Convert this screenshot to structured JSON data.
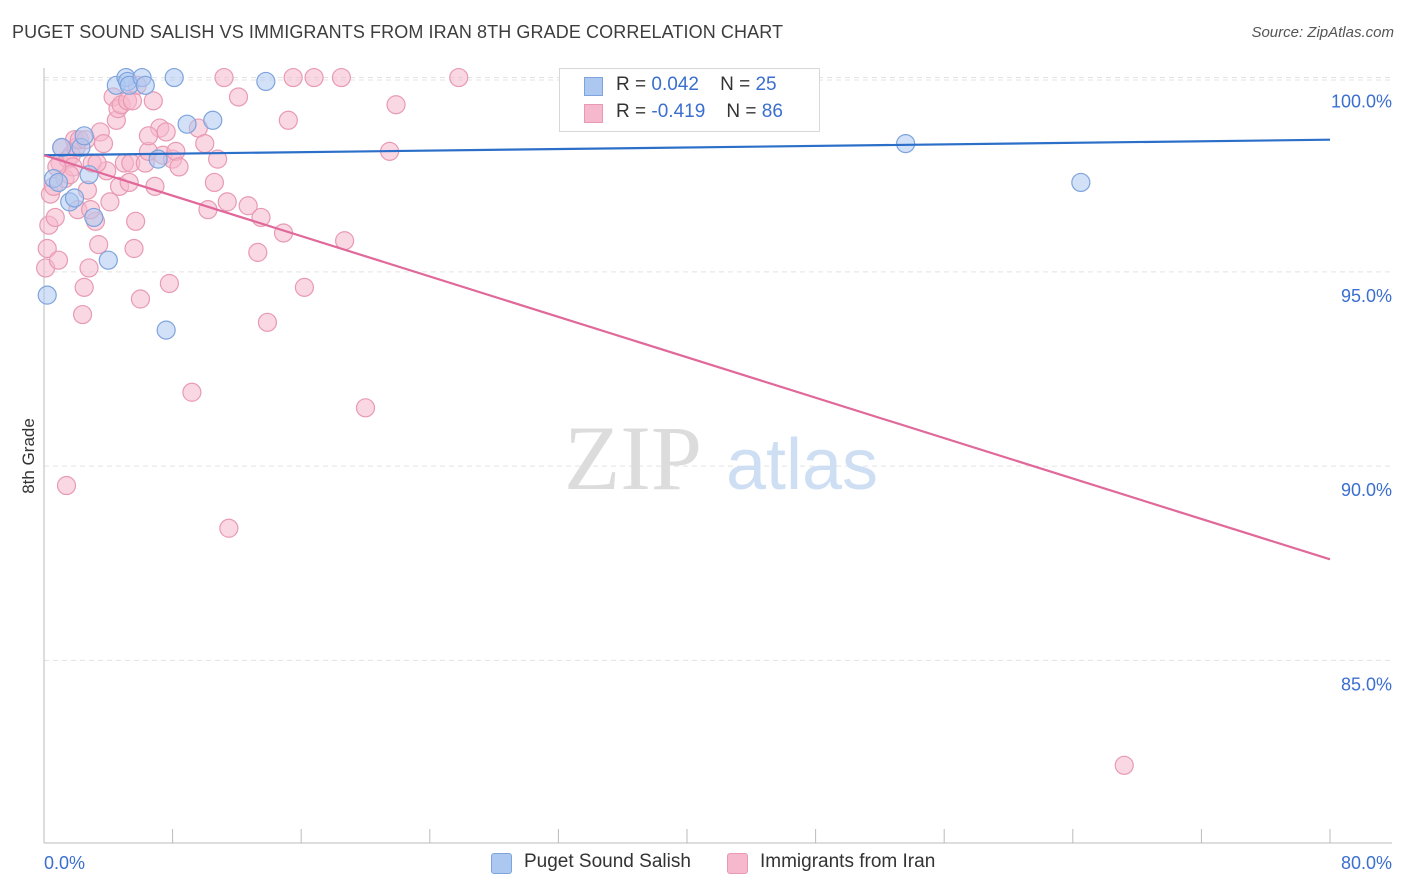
{
  "title": "PUGET SOUND SALISH VS IMMIGRANTS FROM IRAN 8TH GRADE CORRELATION CHART",
  "source": "Source: ZipAtlas.com",
  "watermark": {
    "zip": "ZIP",
    "atlas": "atlas"
  },
  "colors": {
    "blue_fill": "#adc8f0",
    "blue_stroke": "#7ea3dd",
    "blue_line": "#2c6fc9",
    "pink_fill": "#f6b8cc",
    "pink_stroke": "#e89ab3",
    "pink_line": "#e0689a",
    "tick_label": "#3b6fcf",
    "grid": "#e3e3e3"
  },
  "legend_top": {
    "rows": [
      {
        "r_label": "R =",
        "r_value": "0.042",
        "n_label": "N =",
        "n_value": "25"
      },
      {
        "r_label": "R =",
        "r_value": "-0.419",
        "n_label": "N =",
        "n_value": "86"
      }
    ]
  },
  "legend_bottom": {
    "items": [
      {
        "label": "Puget Sound Salish"
      },
      {
        "label": "Immigrants from Iran"
      }
    ]
  },
  "chart_data": {
    "type": "scatter",
    "title": "PUGET SOUND SALISH VS IMMIGRANTS FROM IRAN 8TH GRADE CORRELATION CHART",
    "xlabel": "",
    "ylabel": "8th Grade",
    "xlim": [
      0,
      80
    ],
    "ylim": [
      80.3,
      100.4
    ],
    "x_tick_labels": [
      "0.0%",
      "80.0%"
    ],
    "y_ticks": [
      85,
      90,
      95,
      100
    ],
    "y_tick_labels": [
      "85.0%",
      "90.0%",
      "95.0%",
      "100.0%"
    ],
    "grid": true,
    "series": [
      {
        "name": "Puget Sound Salish",
        "r": 0.042,
        "n": 25,
        "trend": {
          "x": [
            0,
            80
          ],
          "y": [
            98.0,
            98.4
          ]
        },
        "points": [
          {
            "x": 0.2,
            "y": 94.4
          },
          {
            "x": 0.6,
            "y": 97.4
          },
          {
            "x": 0.9,
            "y": 97.3
          },
          {
            "x": 1.1,
            "y": 98.2
          },
          {
            "x": 1.6,
            "y": 96.8
          },
          {
            "x": 1.9,
            "y": 96.9
          },
          {
            "x": 2.3,
            "y": 98.2
          },
          {
            "x": 2.5,
            "y": 98.5
          },
          {
            "x": 2.8,
            "y": 97.5
          },
          {
            "x": 3.1,
            "y": 96.4
          },
          {
            "x": 4.0,
            "y": 95.3
          },
          {
            "x": 4.5,
            "y": 99.8
          },
          {
            "x": 5.1,
            "y": 100.0
          },
          {
            "x": 5.2,
            "y": 99.9
          },
          {
            "x": 5.3,
            "y": 99.8
          },
          {
            "x": 6.1,
            "y": 100.0
          },
          {
            "x": 6.3,
            "y": 99.8
          },
          {
            "x": 7.1,
            "y": 97.9
          },
          {
            "x": 7.6,
            "y": 93.5
          },
          {
            "x": 8.1,
            "y": 100.0
          },
          {
            "x": 8.9,
            "y": 98.8
          },
          {
            "x": 10.5,
            "y": 98.9
          },
          {
            "x": 13.8,
            "y": 99.9
          },
          {
            "x": 53.6,
            "y": 98.3
          },
          {
            "x": 64.5,
            "y": 97.3
          }
        ]
      },
      {
        "name": "Immigrants from Iran",
        "r": -0.419,
        "n": 86,
        "trend": {
          "x": [
            0,
            80
          ],
          "y": [
            98.0,
            87.6
          ]
        },
        "points": [
          {
            "x": 0.1,
            "y": 95.1
          },
          {
            "x": 0.2,
            "y": 95.6
          },
          {
            "x": 0.3,
            "y": 96.2
          },
          {
            "x": 0.4,
            "y": 97.0
          },
          {
            "x": 0.6,
            "y": 97.2
          },
          {
            "x": 0.7,
            "y": 96.4
          },
          {
            "x": 0.9,
            "y": 95.3
          },
          {
            "x": 1.0,
            "y": 97.8
          },
          {
            "x": 1.1,
            "y": 98.2
          },
          {
            "x": 1.3,
            "y": 97.4
          },
          {
            "x": 1.4,
            "y": 89.5
          },
          {
            "x": 1.5,
            "y": 97.9
          },
          {
            "x": 1.7,
            "y": 98.0
          },
          {
            "x": 1.8,
            "y": 97.7
          },
          {
            "x": 1.9,
            "y": 98.4
          },
          {
            "x": 2.0,
            "y": 98.2
          },
          {
            "x": 2.1,
            "y": 96.6
          },
          {
            "x": 2.2,
            "y": 98.4
          },
          {
            "x": 2.4,
            "y": 93.9
          },
          {
            "x": 2.5,
            "y": 94.6
          },
          {
            "x": 2.6,
            "y": 98.4
          },
          {
            "x": 2.7,
            "y": 97.1
          },
          {
            "x": 2.8,
            "y": 95.1
          },
          {
            "x": 3.0,
            "y": 97.8
          },
          {
            "x": 3.2,
            "y": 96.3
          },
          {
            "x": 3.4,
            "y": 95.7
          },
          {
            "x": 3.5,
            "y": 98.6
          },
          {
            "x": 3.7,
            "y": 98.3
          },
          {
            "x": 3.9,
            "y": 97.6
          },
          {
            "x": 4.1,
            "y": 96.8
          },
          {
            "x": 4.3,
            "y": 99.5
          },
          {
            "x": 4.5,
            "y": 98.9
          },
          {
            "x": 4.6,
            "y": 99.2
          },
          {
            "x": 4.7,
            "y": 97.2
          },
          {
            "x": 4.8,
            "y": 99.3
          },
          {
            "x": 5.0,
            "y": 97.8
          },
          {
            "x": 5.2,
            "y": 99.4
          },
          {
            "x": 5.4,
            "y": 97.8
          },
          {
            "x": 5.5,
            "y": 99.4
          },
          {
            "x": 5.6,
            "y": 95.6
          },
          {
            "x": 5.7,
            "y": 96.3
          },
          {
            "x": 5.8,
            "y": 99.8
          },
          {
            "x": 6.0,
            "y": 94.3
          },
          {
            "x": 6.3,
            "y": 97.8
          },
          {
            "x": 6.5,
            "y": 98.1
          },
          {
            "x": 6.8,
            "y": 99.4
          },
          {
            "x": 6.9,
            "y": 97.2
          },
          {
            "x": 7.2,
            "y": 98.7
          },
          {
            "x": 7.4,
            "y": 98.0
          },
          {
            "x": 7.6,
            "y": 98.6
          },
          {
            "x": 7.8,
            "y": 94.7
          },
          {
            "x": 8.0,
            "y": 97.9
          },
          {
            "x": 8.2,
            "y": 98.1
          },
          {
            "x": 8.4,
            "y": 97.7
          },
          {
            "x": 9.2,
            "y": 91.9
          },
          {
            "x": 9.6,
            "y": 98.7
          },
          {
            "x": 10.0,
            "y": 98.3
          },
          {
            "x": 10.2,
            "y": 96.6
          },
          {
            "x": 10.6,
            "y": 97.3
          },
          {
            "x": 10.8,
            "y": 97.9
          },
          {
            "x": 11.2,
            "y": 100.0
          },
          {
            "x": 11.4,
            "y": 96.8
          },
          {
            "x": 11.5,
            "y": 88.4
          },
          {
            "x": 12.1,
            "y": 99.5
          },
          {
            "x": 12.7,
            "y": 96.7
          },
          {
            "x": 13.3,
            "y": 95.5
          },
          {
            "x": 13.5,
            "y": 96.4
          },
          {
            "x": 13.9,
            "y": 93.7
          },
          {
            "x": 14.9,
            "y": 96.0
          },
          {
            "x": 15.2,
            "y": 98.9
          },
          {
            "x": 15.5,
            "y": 100.0
          },
          {
            "x": 16.2,
            "y": 94.6
          },
          {
            "x": 16.8,
            "y": 100.0
          },
          {
            "x": 18.7,
            "y": 95.8
          },
          {
            "x": 18.5,
            "y": 100.0
          },
          {
            "x": 20.0,
            "y": 91.5
          },
          {
            "x": 21.5,
            "y": 98.1
          },
          {
            "x": 21.9,
            "y": 99.3
          },
          {
            "x": 25.8,
            "y": 100.0
          },
          {
            "x": 67.2,
            "y": 82.3
          },
          {
            "x": 6.5,
            "y": 98.5
          },
          {
            "x": 3.3,
            "y": 97.8
          },
          {
            "x": 1.6,
            "y": 97.5
          },
          {
            "x": 5.3,
            "y": 97.3
          },
          {
            "x": 0.8,
            "y": 97.7
          },
          {
            "x": 2.9,
            "y": 96.6
          }
        ]
      }
    ]
  }
}
